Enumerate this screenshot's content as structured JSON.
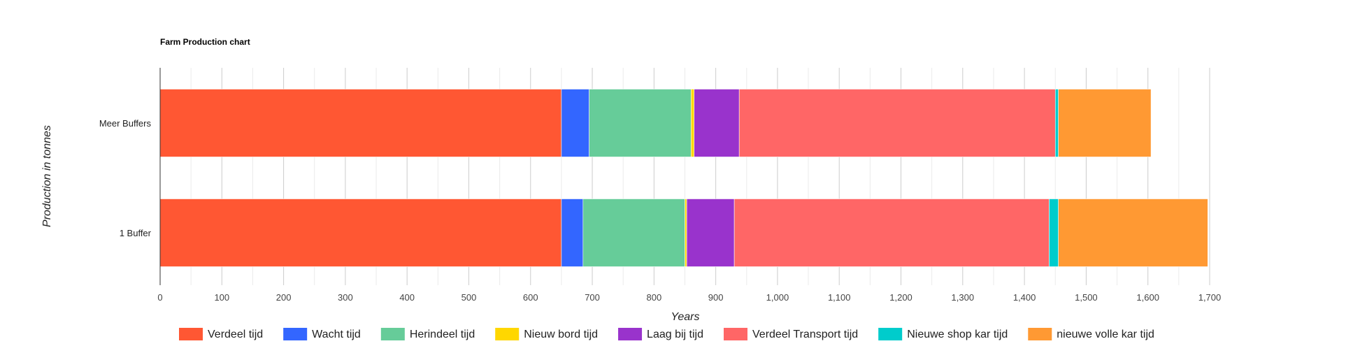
{
  "chart_data": {
    "type": "bar",
    "orientation": "horizontal",
    "stacked": true,
    "title": "Farm Production chart",
    "xlabel": "Years",
    "ylabel": "Production in tonnes",
    "xlim": [
      0,
      1700
    ],
    "x_ticks": [
      "0",
      "100",
      "200",
      "300",
      "400",
      "500",
      "600",
      "700",
      "800",
      "900",
      "1,000",
      "1,100",
      "1,200",
      "1,300",
      "1,400",
      "1,500",
      "1,600",
      "1,700"
    ],
    "categories": [
      "Meer Buffers",
      "1 Buffer"
    ],
    "series": [
      {
        "name": "Verdeel tijd",
        "color": "#ff5733",
        "values": [
          650,
          650
        ]
      },
      {
        "name": "Wacht tijd",
        "color": "#3366ff",
        "values": [
          45,
          35
        ]
      },
      {
        "name": "Herindeel tijd",
        "color": "#66cc99",
        "values": [
          165,
          165
        ]
      },
      {
        "name": "Nieuw bord tijd",
        "color": "#ffd700",
        "values": [
          5,
          3
        ]
      },
      {
        "name": "Laag bij tijd",
        "color": "#9933cc",
        "values": [
          73,
          77
        ]
      },
      {
        "name": "Verdeel Transport tijd",
        "color": "#ff6666",
        "values": [
          512,
          510
        ]
      },
      {
        "name": "Nieuwe shop kar tijd",
        "color": "#00cccc",
        "values": [
          5,
          15
        ]
      },
      {
        "name": "nieuwe volle kar tijd",
        "color": "#ff9933",
        "values": [
          150,
          242
        ]
      }
    ],
    "grid": true,
    "legend_position": "bottom"
  }
}
